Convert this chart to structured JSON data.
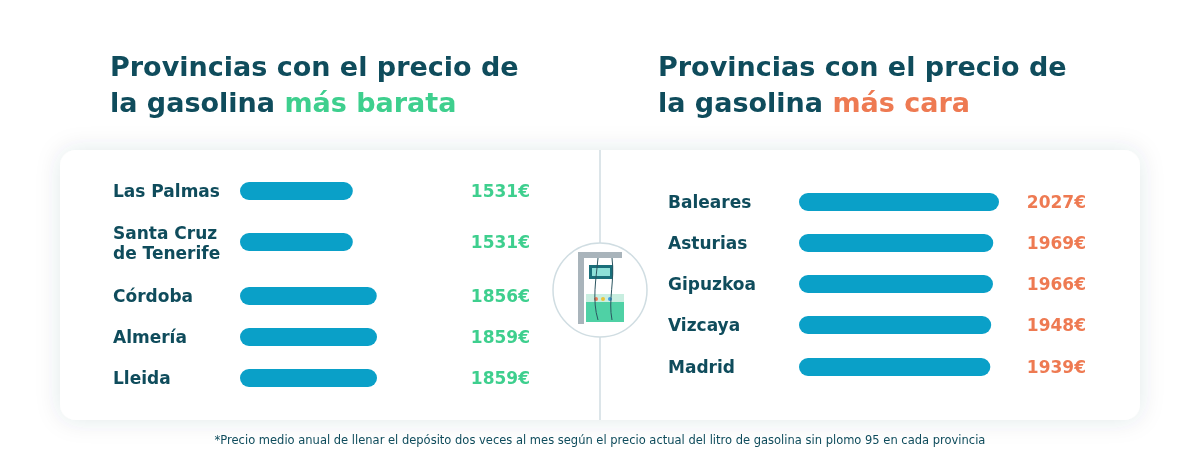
{
  "chart_data": [
    {
      "type": "bar",
      "orientation": "horizontal",
      "title": "Provincias con el precio de la gasolina más barata",
      "categories": [
        "Las Palmas",
        "Santa Cruz de Tenerife",
        "Córdoba",
        "Almería",
        "Lleida"
      ],
      "values": [
        1531,
        1531,
        1856,
        1859,
        1859
      ],
      "value_labels": [
        "1531€",
        "1531€",
        "1856€",
        "1859€",
        "1859€"
      ],
      "color": "#0aa0c8",
      "tick_labels": "y",
      "annotations": [
        "*Precio medio anual de llenar el depósito dos veces al mes según el precio actual del litro de gasolina sin plomo 95 en cada provincia"
      ]
    },
    {
      "type": "bar",
      "orientation": "horizontal",
      "title": "Provincias con el precio de la gasolina más cara",
      "categories": [
        "Baleares",
        "Asturias",
        "Gipuzkoa",
        "Vizcaya",
        "Madrid"
      ],
      "values": [
        2027,
        1969,
        1966,
        1948,
        1939
      ],
      "value_labels": [
        "2027€",
        "1969€",
        "1966€",
        "1948€",
        "1939€"
      ],
      "color": "#0aa0c8",
      "tick_labels": "y"
    }
  ]
}
